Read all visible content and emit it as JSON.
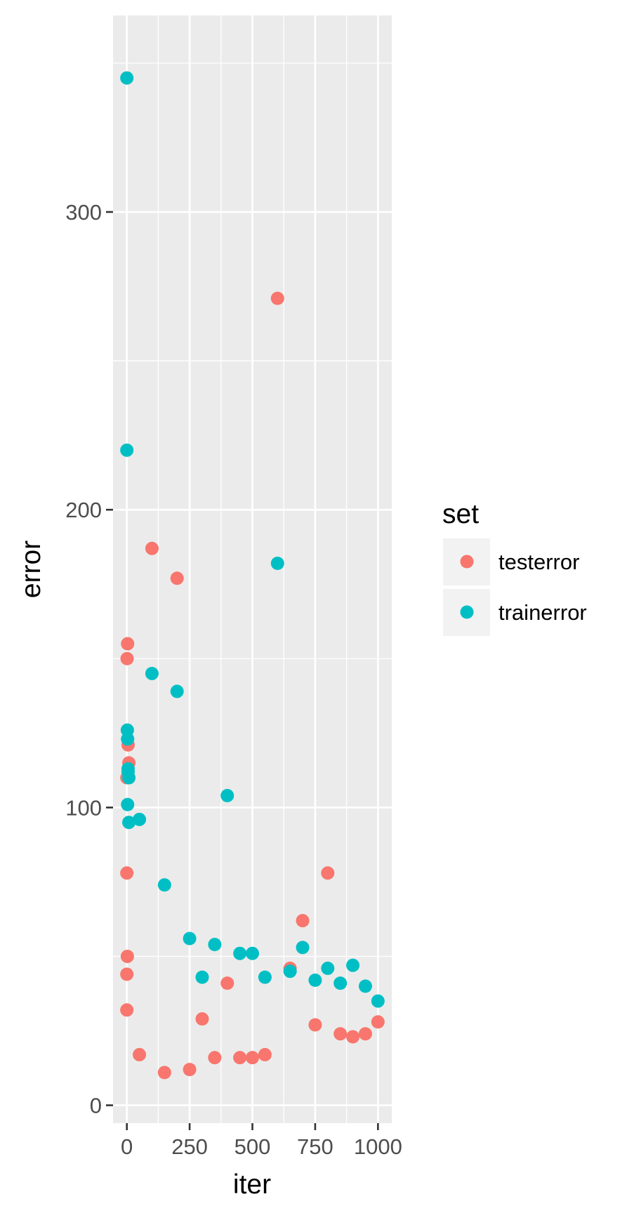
{
  "chart_data": {
    "type": "scatter",
    "title": "",
    "xlabel": "iter",
    "ylabel": "error",
    "xlim": [
      -55,
      1055
    ],
    "ylim": [
      -6,
      366
    ],
    "x_ticks": [
      0,
      250,
      500,
      750,
      1000
    ],
    "y_ticks": [
      0,
      100,
      200,
      300
    ],
    "x_tick_labels": [
      "0",
      "250",
      "500",
      "750",
      "1000"
    ],
    "y_tick_labels": [
      "0",
      "100",
      "200",
      "300"
    ],
    "grid": true,
    "legend": {
      "title": "set",
      "placement": "right",
      "entries": [
        "testerror",
        "trainerror"
      ]
    },
    "series": [
      {
        "name": "testerror",
        "color": "#F8766D",
        "points": [
          {
            "x": 0,
            "y": 110
          },
          {
            "x": 0,
            "y": 78
          },
          {
            "x": 0,
            "y": 44
          },
          {
            "x": 0,
            "y": 32
          },
          {
            "x": 1,
            "y": 150
          },
          {
            "x": 2,
            "y": 50
          },
          {
            "x": 3,
            "y": 155
          },
          {
            "x": 5,
            "y": 121
          },
          {
            "x": 8,
            "y": 115
          },
          {
            "x": 50,
            "y": 17
          },
          {
            "x": 100,
            "y": 187
          },
          {
            "x": 150,
            "y": 11
          },
          {
            "x": 200,
            "y": 177
          },
          {
            "x": 250,
            "y": 12
          },
          {
            "x": 300,
            "y": 29
          },
          {
            "x": 350,
            "y": 16
          },
          {
            "x": 400,
            "y": 41
          },
          {
            "x": 450,
            "y": 16
          },
          {
            "x": 500,
            "y": 16
          },
          {
            "x": 550,
            "y": 17
          },
          {
            "x": 600,
            "y": 271
          },
          {
            "x": 650,
            "y": 46
          },
          {
            "x": 700,
            "y": 62
          },
          {
            "x": 750,
            "y": 27
          },
          {
            "x": 800,
            "y": 78
          },
          {
            "x": 850,
            "y": 24
          },
          {
            "x": 900,
            "y": 23
          },
          {
            "x": 950,
            "y": 24
          },
          {
            "x": 1000,
            "y": 28
          }
        ]
      },
      {
        "name": "trainerror",
        "color": "#00BFC4",
        "points": [
          {
            "x": 0,
            "y": 345
          },
          {
            "x": 0,
            "y": 220
          },
          {
            "x": 2,
            "y": 126
          },
          {
            "x": 3,
            "y": 123
          },
          {
            "x": 5,
            "y": 113
          },
          {
            "x": 5,
            "y": 112
          },
          {
            "x": 8,
            "y": 110
          },
          {
            "x": 3,
            "y": 101
          },
          {
            "x": 8,
            "y": 95
          },
          {
            "x": 50,
            "y": 96
          },
          {
            "x": 100,
            "y": 145
          },
          {
            "x": 150,
            "y": 74
          },
          {
            "x": 200,
            "y": 139
          },
          {
            "x": 250,
            "y": 56
          },
          {
            "x": 300,
            "y": 43
          },
          {
            "x": 350,
            "y": 54
          },
          {
            "x": 400,
            "y": 104
          },
          {
            "x": 450,
            "y": 51
          },
          {
            "x": 500,
            "y": 51
          },
          {
            "x": 550,
            "y": 43
          },
          {
            "x": 600,
            "y": 182
          },
          {
            "x": 650,
            "y": 45
          },
          {
            "x": 700,
            "y": 53
          },
          {
            "x": 750,
            "y": 42
          },
          {
            "x": 800,
            "y": 46
          },
          {
            "x": 850,
            "y": 41
          },
          {
            "x": 900,
            "y": 47
          },
          {
            "x": 950,
            "y": 40
          },
          {
            "x": 1000,
            "y": 35
          }
        ]
      }
    ]
  }
}
